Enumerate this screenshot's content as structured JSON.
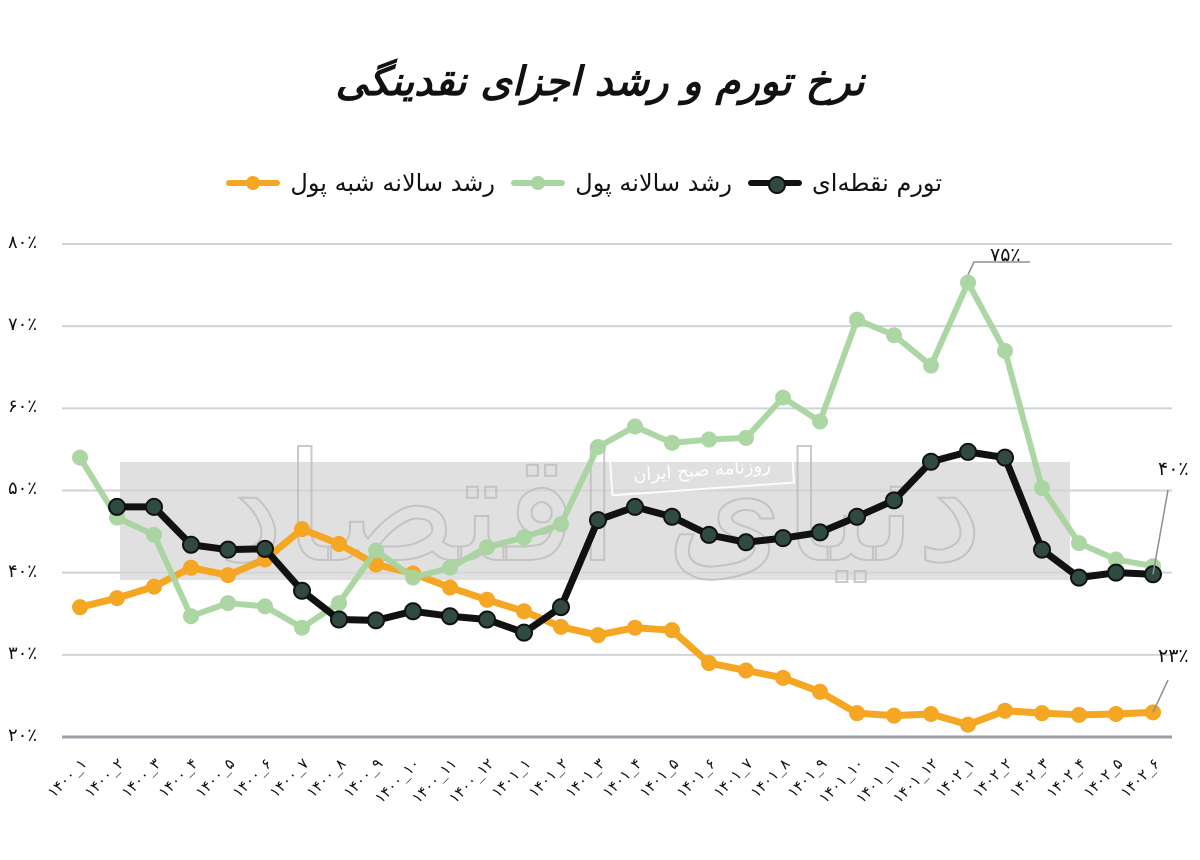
{
  "title": "نرخ تورم و رشد اجزای نقدینگی",
  "legend": [
    {
      "label": "رشد سالانه شبه پول",
      "color": "#F5A623"
    },
    {
      "label": "رشد سالانه پول",
      "color": "#A8D5A0"
    },
    {
      "label": "تورم نقطه‌ای",
      "color": "#111111"
    }
  ],
  "watermark": {
    "text": "روزنامه صبح ایران",
    "logo": "دنیای اقتصاد"
  },
  "y_ticks": [
    "۸۰٪",
    "۷۰٪",
    "۶۰٪",
    "۵۰٪",
    "۴۰٪",
    "۳۰٪",
    "۲۰٪"
  ],
  "annotations": {
    "money_peak": "۷۵٪",
    "inflation_end": "۴۰٪",
    "quasi_end": "۲۳٪"
  },
  "chart_data": {
    "type": "line",
    "title": "نرخ تورم و رشد اجزای نقدینگی",
    "xlabel": "",
    "ylabel": "",
    "ylim": [
      20,
      80
    ],
    "grid": true,
    "legend_position": "top",
    "categories": [
      "۱۴۰۰_۱",
      "۱۴۰۰_۲",
      "۱۴۰۰_۳",
      "۱۴۰۰_۴",
      "۱۴۰۰_۵",
      "۱۴۰۰_۶",
      "۱۴۰۰_۷",
      "۱۴۰۰_۸",
      "۱۴۰۰_۹",
      "۱۴۰۰_۱۰",
      "۱۴۰۰_۱۱",
      "۱۴۰۰_۱۲",
      "۱۴۰۱_۱",
      "۱۴۰۱_۲",
      "۱۴۰۱_۳",
      "۱۴۰۱_۴",
      "۱۴۰۱_۵",
      "۱۴۰۱_۶",
      "۱۴۰۱_۷",
      "۱۴۰۱_۸",
      "۱۴۰۱_۹",
      "۱۴۰۱_۱۰",
      "۱۴۰۱_۱۱",
      "۱۴۰۱_۱۲",
      "۱۴۰۲_۱",
      "۱۴۰۲_۲",
      "۱۴۰۲_۳",
      "۱۴۰۲_۴",
      "۱۴۰۲_۵",
      "۱۴۰۲_۶"
    ],
    "series": [
      {
        "name": "رشد سالانه شبه پول",
        "color": "#F5A623",
        "values": [
          35.8,
          36.9,
          38.3,
          40.6,
          39.7,
          41.6,
          45.3,
          43.5,
          41.0,
          39.9,
          38.2,
          36.7,
          35.3,
          33.4,
          32.4,
          33.3,
          33.0,
          29.0,
          28.1,
          27.2,
          25.5,
          22.9,
          22.6,
          22.8,
          21.5,
          23.2,
          22.9,
          22.7,
          22.8,
          23.0
        ]
      },
      {
        "name": "رشد سالانه پول",
        "color": "#A8D5A0",
        "values": [
          54.0,
          46.7,
          44.6,
          34.7,
          36.3,
          35.9,
          33.3,
          36.3,
          42.7,
          39.4,
          40.6,
          43.1,
          44.3,
          45.9,
          55.3,
          57.8,
          55.8,
          56.2,
          56.4,
          61.3,
          58.4,
          70.8,
          68.9,
          65.2,
          75.3,
          67.0,
          50.3,
          43.6,
          41.6,
          40.8
        ]
      },
      {
        "name": "تورم نقطه‌ای",
        "color": "#111111",
        "values": [
          null,
          48.0,
          48.0,
          43.4,
          42.8,
          42.9,
          37.8,
          34.3,
          34.2,
          35.3,
          34.7,
          34.3,
          32.7,
          35.8,
          46.4,
          48.0,
          46.8,
          44.6,
          43.7,
          44.2,
          44.9,
          46.8,
          48.8,
          53.5,
          54.7,
          54.0,
          42.8,
          39.4,
          40.0,
          39.8
        ]
      }
    ]
  }
}
